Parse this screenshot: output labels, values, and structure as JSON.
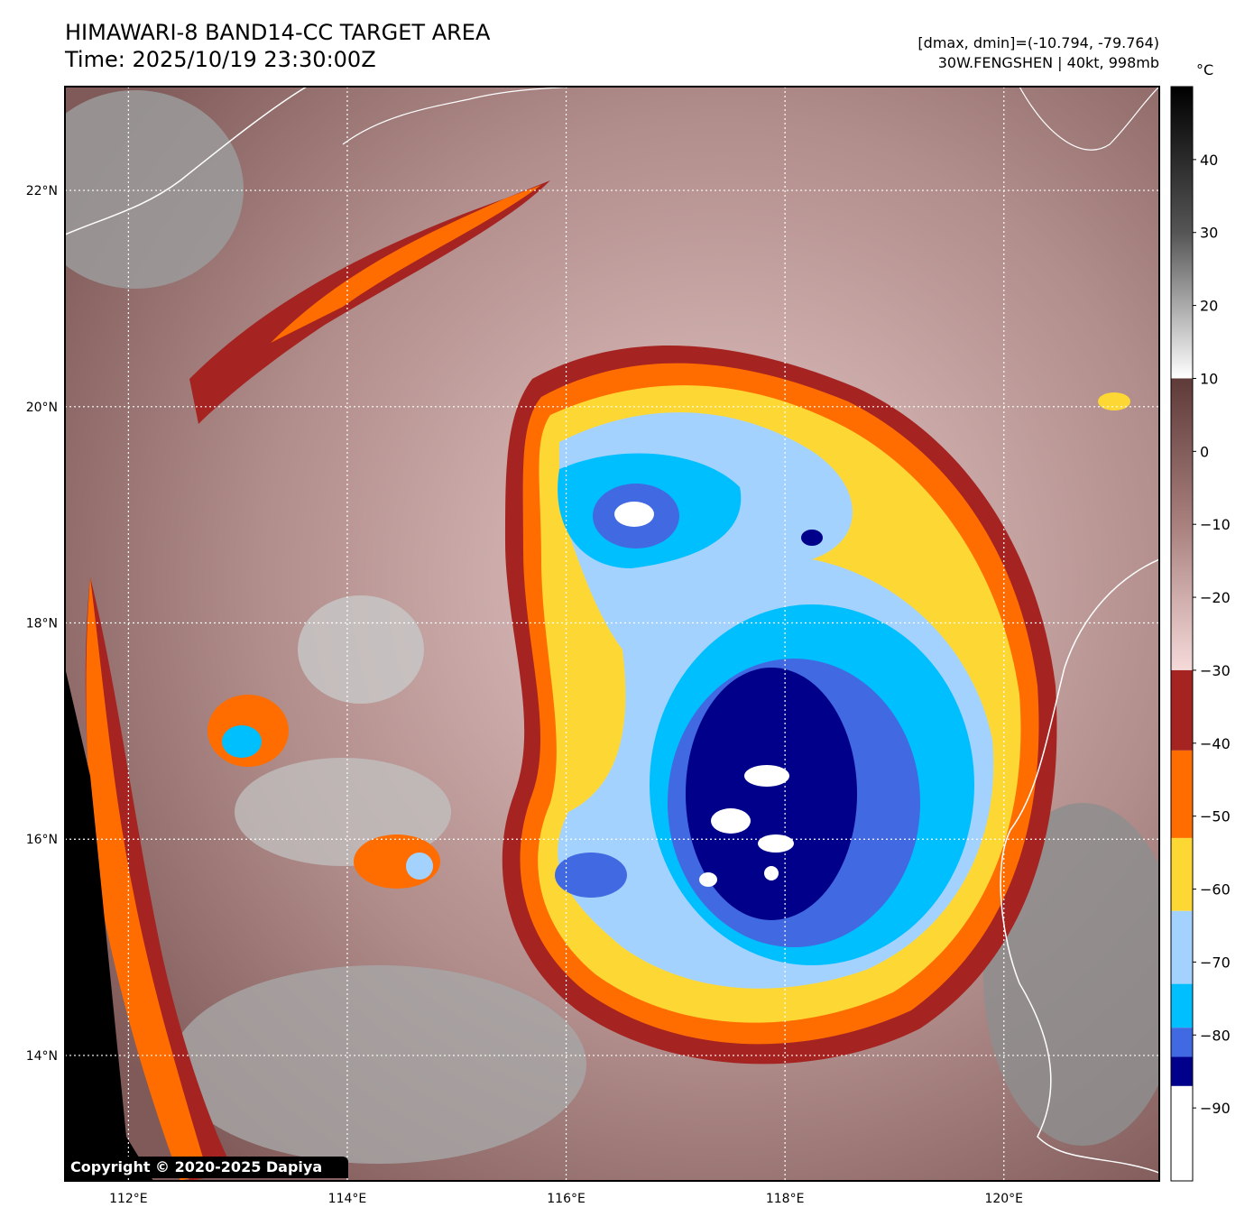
{
  "header": {
    "title_line1": "HIMAWARI-8 BAND14-CC TARGET AREA",
    "title_line2": "Time: 2025/10/19 23:30:00Z",
    "info_line1": "[dmax, dmin]=(-10.794, -79.764)",
    "info_line2": "30W.FENGSHEN | 40kt, 998mb"
  },
  "axes": {
    "lon_ticks": [
      {
        "value": 112,
        "label": "112°E"
      },
      {
        "value": 114,
        "label": "114°E"
      },
      {
        "value": 116,
        "label": "116°E"
      },
      {
        "value": 118,
        "label": "118°E"
      },
      {
        "value": 120,
        "label": "120°E"
      }
    ],
    "lat_ticks": [
      {
        "value": 22,
        "label": "22°N"
      },
      {
        "value": 20,
        "label": "20°N"
      },
      {
        "value": 18,
        "label": "18°N"
      },
      {
        "value": 16,
        "label": "16°N"
      },
      {
        "value": 14,
        "label": "14°N"
      }
    ],
    "lon_range": [
      111.42,
      121.42
    ],
    "lat_range": [
      12.84,
      22.96
    ]
  },
  "colorbar": {
    "unit": "°C",
    "range": [
      -100,
      50
    ],
    "ticks": [
      {
        "value": 40,
        "label": "40"
      },
      {
        "value": 30,
        "label": "30"
      },
      {
        "value": 20,
        "label": "20"
      },
      {
        "value": 10,
        "label": "10"
      },
      {
        "value": 0,
        "label": "0"
      },
      {
        "value": -10,
        "label": "−10"
      },
      {
        "value": -20,
        "label": "−20"
      },
      {
        "value": -30,
        "label": "−30"
      },
      {
        "value": -40,
        "label": "−40"
      },
      {
        "value": -50,
        "label": "−50"
      },
      {
        "value": -60,
        "label": "−60"
      },
      {
        "value": -70,
        "label": "−70"
      },
      {
        "value": -80,
        "label": "−80"
      },
      {
        "value": -90,
        "label": "−90"
      }
    ],
    "segments": [
      {
        "from": 10,
        "to": 50,
        "color": "gradient-gray"
      },
      {
        "from": -30,
        "to": 10,
        "color": "gradient-brown"
      },
      {
        "from": -41,
        "to": -30,
        "color": "#a52422"
      },
      {
        "from": -53,
        "to": -41,
        "color": "#ff6d00"
      },
      {
        "from": -63,
        "to": -53,
        "color": "#fdd835"
      },
      {
        "from": -73,
        "to": -63,
        "color": "#a4d2ff"
      },
      {
        "from": -79,
        "to": -73,
        "color": "#00bfff"
      },
      {
        "from": -83,
        "to": -79,
        "color": "#4169e1"
      },
      {
        "from": -87,
        "to": -83,
        "color": "#00008b"
      },
      {
        "from": -100,
        "to": -87,
        "color": "#ffffff"
      }
    ]
  },
  "copyright": "Copyright © 2020-2025 Dapiya"
}
